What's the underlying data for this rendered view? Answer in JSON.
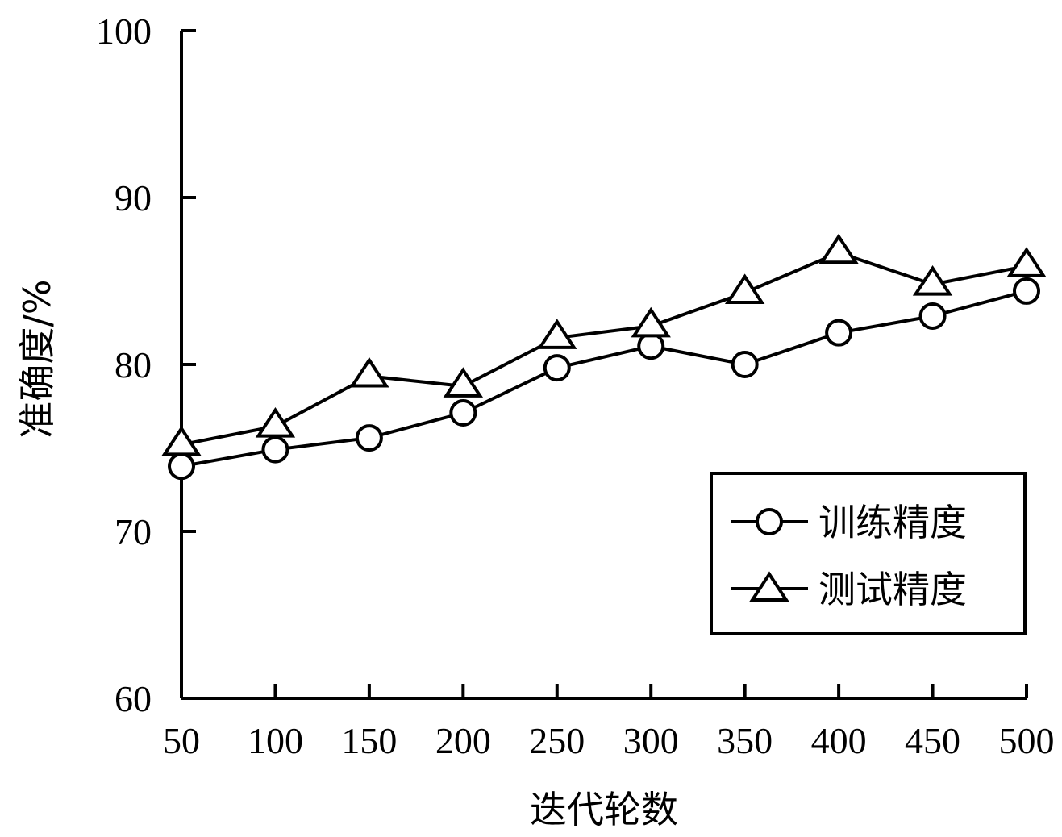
{
  "chart_data": {
    "type": "line",
    "x": [
      50,
      100,
      150,
      200,
      250,
      300,
      350,
      400,
      450,
      500
    ],
    "xticks": [
      "50",
      "100",
      "150",
      "200",
      "250",
      "300",
      "350",
      "400",
      "450",
      "500"
    ],
    "yticks": [
      "60",
      "70",
      "80",
      "90",
      "100"
    ],
    "ylim": [
      60,
      100
    ],
    "xlabel": "迭代轮数",
    "ylabel": "准确度/%",
    "legend_position": "bottom-right",
    "grid": false,
    "series": [
      {
        "name": "训练精度",
        "marker": "circle",
        "values": [
          73.9,
          74.9,
          75.6,
          77.1,
          79.8,
          81.1,
          80.0,
          81.9,
          82.9,
          84.4
        ]
      },
      {
        "name": "测试精度",
        "marker": "triangle",
        "values": [
          75.2,
          76.3,
          79.3,
          78.7,
          81.6,
          82.3,
          84.3,
          86.7,
          84.8,
          85.9
        ]
      }
    ]
  }
}
